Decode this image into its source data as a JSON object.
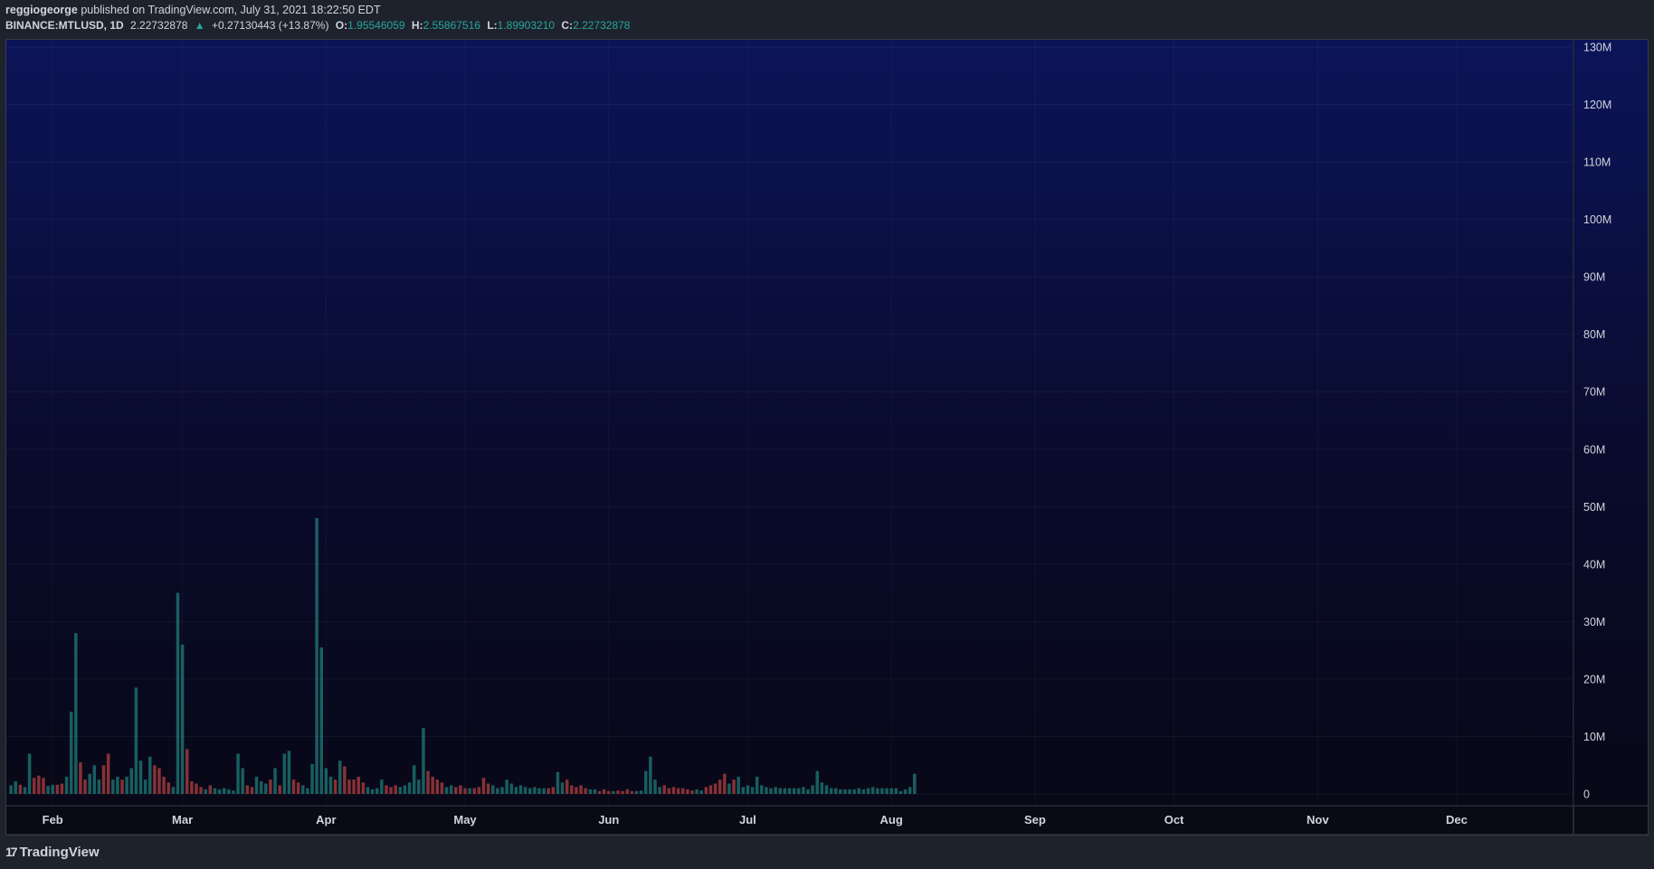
{
  "header": {
    "author": "reggiogeorge",
    "published": "published on TradingView.com, July 31, 2021 18:22:50 EDT",
    "symbol": "BINANCE:MTLUSD, 1D",
    "last": "2.22732878",
    "change_arrow": "▲",
    "change": "+0.27130443 (+13.87%)",
    "open_label": "O:",
    "open": "1.95546059",
    "high_label": "H:",
    "high": "2.55867516",
    "low_label": "L:",
    "low": "1.89903210",
    "close_label": "C:",
    "close": "2.22732878"
  },
  "footer": {
    "brand": "TradingView",
    "logo_icon": "tradingview-logo-icon"
  },
  "colors": {
    "up": "#26a69a",
    "down": "#ef5350",
    "bg_top": "#0c1459",
    "bg_bottom": "#080817",
    "frame": "#1e222d",
    "grid": "#2a2e39",
    "text": "#d1d4dc"
  },
  "chart_data": {
    "type": "bar",
    "title": "",
    "ylabel": "",
    "ylim": [
      0,
      130000000
    ],
    "y_ticks": [
      {
        "value": 0,
        "label": "0"
      },
      {
        "value": 10000000,
        "label": "10M"
      },
      {
        "value": 20000000,
        "label": "20M"
      },
      {
        "value": 30000000,
        "label": "30M"
      },
      {
        "value": 40000000,
        "label": "40M"
      },
      {
        "value": 50000000,
        "label": "50M"
      },
      {
        "value": 60000000,
        "label": "60M"
      },
      {
        "value": 70000000,
        "label": "70M"
      },
      {
        "value": 80000000,
        "label": "80M"
      },
      {
        "value": 90000000,
        "label": "90M"
      },
      {
        "value": 100000000,
        "label": "100M"
      },
      {
        "value": 110000000,
        "label": "110M"
      },
      {
        "value": 120000000,
        "label": "120M"
      },
      {
        "value": 130000000,
        "label": "130M"
      }
    ],
    "x_ticks": [
      {
        "day": 31,
        "label": "Feb"
      },
      {
        "day": 59,
        "label": "Mar"
      },
      {
        "day": 90,
        "label": "Apr"
      },
      {
        "day": 120,
        "label": "May"
      },
      {
        "day": 151,
        "label": "Jun"
      },
      {
        "day": 181,
        "label": "Jul"
      },
      {
        "day": 212,
        "label": "Aug"
      },
      {
        "day": 243,
        "label": "Sep"
      },
      {
        "day": 273,
        "label": "Oct"
      },
      {
        "day": 304,
        "label": "Nov"
      },
      {
        "day": 334,
        "label": "Dec"
      }
    ],
    "x_range_days": [
      21,
      359
    ],
    "start_day": 22,
    "up_color": "#26a69a",
    "down_color": "#ef5350",
    "volume": [
      1.5,
      2.2,
      1.6,
      1.2,
      7.0,
      2.8,
      3.2,
      2.8,
      1.4,
      1.6,
      1.6,
      1.8,
      3.0,
      14.3,
      28.0,
      5.5,
      2.5,
      3.5,
      5.0,
      2.5,
      5.0,
      7.0,
      2.5,
      3.0,
      2.5,
      3.0,
      4.5,
      18.5,
      5.8,
      2.5,
      6.5,
      5.0,
      4.5,
      3.0,
      2.0,
      1.2,
      35.0,
      26.0,
      7.8,
      2.2,
      1.8,
      1.2,
      0.8,
      1.5,
      1.0,
      0.8,
      1.0,
      0.8,
      0.6,
      7.0,
      4.5,
      1.5,
      1.2,
      3.0,
      2.2,
      1.8,
      2.5,
      4.5,
      1.5,
      7.0,
      7.5,
      2.5,
      2.0,
      1.5,
      1.0,
      5.2,
      48.0,
      25.5,
      4.5,
      3.0,
      2.5,
      5.8,
      4.8,
      2.5,
      2.5,
      3.0,
      2.0,
      1.2,
      0.8,
      1.0,
      2.5,
      1.5,
      1.2,
      1.5,
      1.2,
      1.5,
      2.0,
      5.0,
      2.5,
      11.5,
      4.0,
      3.0,
      2.5,
      2.0,
      1.2,
      1.5,
      1.2,
      1.5,
      1.0,
      1.0,
      1.0,
      1.2,
      2.8,
      1.8,
      1.5,
      1.0,
      1.2,
      2.5,
      1.8,
      1.2,
      1.5,
      1.2,
      1.0,
      1.2,
      1.0,
      1.0,
      1.0,
      1.2,
      3.8,
      2.0,
      2.5,
      1.5,
      1.2,
      1.5,
      1.0,
      0.8,
      0.8,
      0.5,
      0.8,
      0.5,
      0.5,
      0.6,
      0.5,
      0.8,
      0.5,
      0.5,
      0.6,
      4.0,
      6.5,
      2.5,
      1.2,
      1.5,
      1.0,
      1.2,
      1.0,
      1.0,
      0.8,
      0.6,
      0.8,
      0.6,
      1.2,
      1.5,
      1.8,
      2.5,
      3.5,
      1.8,
      2.5,
      3.0,
      1.2,
      1.5,
      1.2,
      3.0,
      1.5,
      1.2,
      1.0,
      1.2,
      1.0,
      1.0,
      1.0,
      1.0,
      1.0,
      1.2,
      0.8,
      1.5,
      4.0,
      2.0,
      1.5,
      1.0,
      1.0,
      0.8,
      0.8,
      0.8,
      0.8,
      1.0,
      0.8,
      1.0,
      1.2,
      1.0,
      1.0,
      1.0,
      1.0,
      1.0,
      0.5,
      0.8,
      1.2,
      3.5
    ],
    "direction": "uuduuddduudduuudduuudduuduuuuuudddduuudddduduuuuuuudduuududuudduuuuuuududdddduuuuddduuuuuudddduudddudddduuuuuuuuuuuudduuddddduudddudddduuuuuuddddddduuddddduduuuuuuuuuuuuuuuuuuuuuuuuuuuuuu"
  }
}
